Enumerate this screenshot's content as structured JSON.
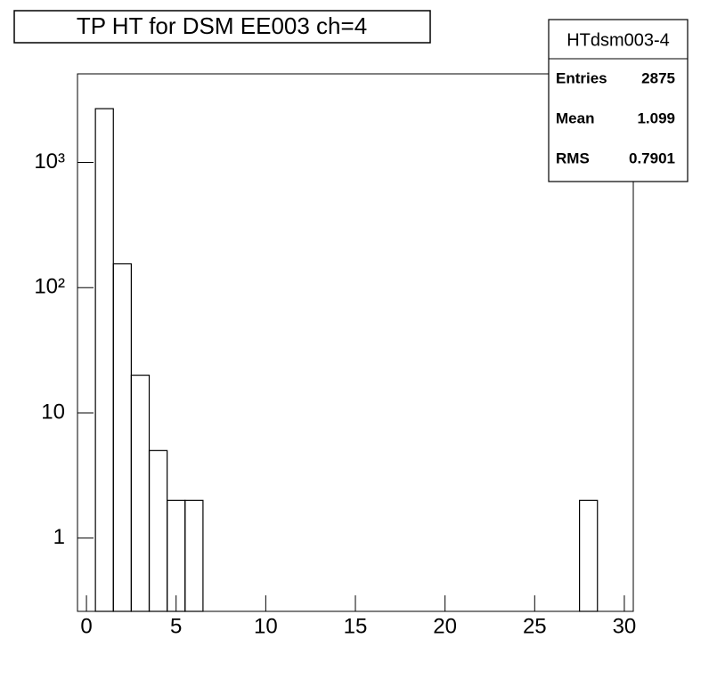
{
  "chart_data": {
    "type": "histogram",
    "title": "TP HT for DSM EE003 ch=4",
    "bins": [
      -0.5,
      0.5,
      1.5,
      2.5,
      3.5,
      4.5,
      5.5,
      6.5,
      7.5,
      8.5,
      9.5,
      10.5,
      11.5,
      12.5,
      13.5,
      14.5,
      15.5,
      16.5,
      17.5,
      18.5,
      19.5,
      20.5,
      21.5,
      22.5,
      23.5,
      24.5,
      25.5,
      26.5,
      27.5,
      28.5,
      29.5,
      30.5
    ],
    "values": [
      0,
      2689,
      155,
      20,
      5,
      2,
      2,
      0,
      0,
      0,
      0,
      0,
      0,
      0,
      0,
      0,
      0,
      0,
      0,
      0,
      0,
      0,
      0,
      0,
      0,
      0,
      0,
      0,
      2,
      0,
      0
    ],
    "color": "#000000",
    "xlim": [
      -0.5,
      30.5
    ],
    "xticks": [
      0,
      5,
      10,
      15,
      20,
      25,
      30
    ],
    "ylim": [
      0.26,
      5100
    ],
    "ylog": true,
    "yticks": [
      1,
      10,
      {
        "value": 100,
        "label": "10²"
      },
      {
        "value": 1000,
        "label": "10³"
      }
    ],
    "stats": {
      "name": "HTdsm003-4",
      "rows": [
        [
          "Entries",
          "2875"
        ],
        [
          "Mean",
          "1.099"
        ],
        [
          "RMS",
          "0.7901"
        ]
      ]
    }
  }
}
